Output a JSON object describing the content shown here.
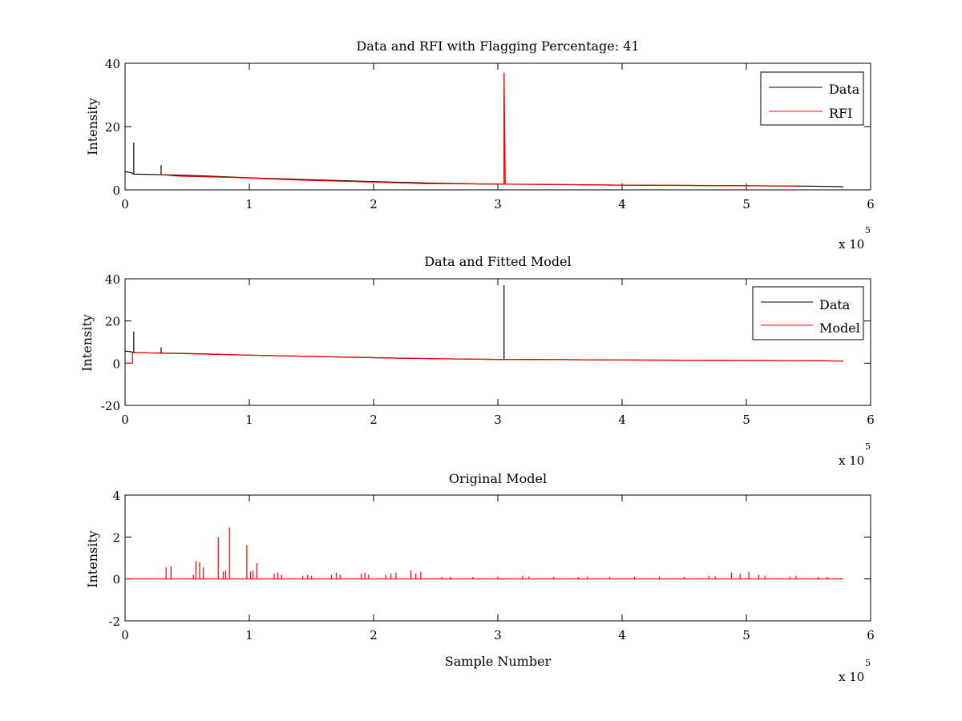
{
  "chart_data": [
    {
      "type": "line",
      "title": "Data and RFI with Flagging Percentage: 41",
      "xlabel": "",
      "ylabel": "Intensity",
      "xlim": [
        0,
        6
      ],
      "ylim": [
        0,
        40
      ],
      "x_ticks": [
        0,
        1,
        2,
        3,
        4,
        5,
        6
      ],
      "y_ticks": [
        0,
        20,
        40
      ],
      "x_multiplier": "x 10",
      "x_exponent": "5",
      "legend": {
        "position": "top-right",
        "entries": [
          "Data",
          "RFI"
        ]
      },
      "series": [
        {
          "name": "Data",
          "color": "#000000",
          "x": [
            0,
            0.05,
            0.07,
            0.5,
            1.0,
            1.5,
            2.0,
            2.5,
            3.0,
            3.05,
            3.5,
            4.0,
            4.5,
            5.0,
            5.5,
            5.78
          ],
          "y": [
            5.8,
            5.4,
            5.0,
            4.6,
            3.8,
            3.2,
            2.6,
            2.1,
            1.8,
            1.8,
            1.7,
            1.5,
            1.4,
            1.3,
            1.2,
            1.0
          ]
        },
        {
          "name": "RFI",
          "color": "#ff0000",
          "x": [
            0.28,
            0.45,
            0.9,
            1.4,
            1.85,
            2.4,
            3.05,
            3.05,
            3.06,
            4.0,
            4.6,
            5.4
          ],
          "y": [
            4.8,
            4.3,
            3.9,
            3.1,
            2.6,
            2.0,
            1.8,
            37.0,
            1.8,
            1.5,
            1.4,
            1.2
          ]
        }
      ],
      "spikes": [
        {
          "series": "Data",
          "x": 0.07,
          "y": 15.0
        },
        {
          "series": "Data",
          "x": 0.29,
          "y": 7.8
        },
        {
          "series": "RFI",
          "x": 3.05,
          "y": 37.0
        }
      ]
    },
    {
      "type": "line",
      "title": "Data and Fitted Model",
      "xlabel": "",
      "ylabel": "Intensity",
      "xlim": [
        0,
        6
      ],
      "ylim": [
        -20,
        40
      ],
      "x_ticks": [
        0,
        1,
        2,
        3,
        4,
        5,
        6
      ],
      "y_ticks": [
        -20,
        0,
        20,
        40
      ],
      "x_multiplier": "x 10",
      "x_exponent": "5",
      "legend": {
        "position": "top-right",
        "entries": [
          "Data",
          "Model"
        ]
      },
      "series": [
        {
          "name": "Data",
          "color": "#000000",
          "x": [
            0,
            0.05,
            0.07,
            0.5,
            1.0,
            1.5,
            2.0,
            2.5,
            3.0,
            3.5,
            4.0,
            4.5,
            5.0,
            5.5,
            5.78
          ],
          "y": [
            5.8,
            5.4,
            5.0,
            4.6,
            3.8,
            3.2,
            2.6,
            2.1,
            1.8,
            1.7,
            1.5,
            1.4,
            1.3,
            1.2,
            1.0
          ]
        },
        {
          "name": "Model",
          "color": "#ff0000",
          "x": [
            0,
            0.06,
            0.06,
            0.5,
            1.0,
            1.5,
            2.0,
            2.5,
            3.0,
            3.5,
            4.0,
            4.5,
            5.0,
            5.5,
            5.78
          ],
          "y": [
            0,
            0,
            5.0,
            4.5,
            3.8,
            3.2,
            2.6,
            2.1,
            1.8,
            1.7,
            1.5,
            1.4,
            1.3,
            1.2,
            1.0
          ]
        }
      ],
      "spikes": [
        {
          "series": "Data",
          "x": 0.07,
          "y": 15.0
        },
        {
          "series": "Data",
          "x": 0.29,
          "y": 7.5
        },
        {
          "series": "Data",
          "x": 3.05,
          "y": 37.0
        }
      ]
    },
    {
      "type": "line",
      "title": "Original Model",
      "xlabel": "Sample Number",
      "ylabel": "Intensity",
      "xlim": [
        0,
        6
      ],
      "ylim": [
        -2,
        4
      ],
      "x_ticks": [
        0,
        1,
        2,
        3,
        4,
        5,
        6
      ],
      "y_ticks": [
        -2,
        0,
        2,
        4
      ],
      "x_multiplier": "x 10",
      "x_exponent": "5",
      "series": [
        {
          "name": "",
          "color": "#ff0000",
          "x": [
            0,
            5.78
          ],
          "y": [
            0,
            0
          ]
        }
      ],
      "spikes": [
        {
          "x": 0.33,
          "y": 0.55
        },
        {
          "x": 0.37,
          "y": 0.6
        },
        {
          "x": 0.55,
          "y": 0.2
        },
        {
          "x": 0.57,
          "y": 0.85
        },
        {
          "x": 0.6,
          "y": 0.8
        },
        {
          "x": 0.63,
          "y": 0.55
        },
        {
          "x": 0.75,
          "y": 2.0
        },
        {
          "x": 0.79,
          "y": 0.35
        },
        {
          "x": 0.81,
          "y": 0.4
        },
        {
          "x": 0.84,
          "y": 2.45
        },
        {
          "x": 0.98,
          "y": 1.6
        },
        {
          "x": 1.01,
          "y": 0.35
        },
        {
          "x": 1.03,
          "y": 0.4
        },
        {
          "x": 1.06,
          "y": 0.75
        },
        {
          "x": 1.2,
          "y": 0.25
        },
        {
          "x": 1.23,
          "y": 0.3
        },
        {
          "x": 1.26,
          "y": 0.2
        },
        {
          "x": 1.43,
          "y": 0.15
        },
        {
          "x": 1.47,
          "y": 0.2
        },
        {
          "x": 1.5,
          "y": 0.15
        },
        {
          "x": 1.66,
          "y": 0.2
        },
        {
          "x": 1.7,
          "y": 0.3
        },
        {
          "x": 1.73,
          "y": 0.2
        },
        {
          "x": 1.9,
          "y": 0.25
        },
        {
          "x": 1.93,
          "y": 0.3
        },
        {
          "x": 1.96,
          "y": 0.2
        },
        {
          "x": 2.1,
          "y": 0.2
        },
        {
          "x": 2.14,
          "y": 0.25
        },
        {
          "x": 2.18,
          "y": 0.3
        },
        {
          "x": 2.3,
          "y": 0.4
        },
        {
          "x": 2.34,
          "y": 0.25
        },
        {
          "x": 2.38,
          "y": 0.35
        },
        {
          "x": 2.55,
          "y": 0.1
        },
        {
          "x": 2.62,
          "y": 0.1
        },
        {
          "x": 2.8,
          "y": 0.1
        },
        {
          "x": 3.0,
          "y": 0.12
        },
        {
          "x": 3.2,
          "y": 0.15
        },
        {
          "x": 3.25,
          "y": 0.12
        },
        {
          "x": 3.45,
          "y": 0.1
        },
        {
          "x": 3.65,
          "y": 0.1
        },
        {
          "x": 3.72,
          "y": 0.12
        },
        {
          "x": 3.9,
          "y": 0.1
        },
        {
          "x": 4.1,
          "y": 0.1
        },
        {
          "x": 4.3,
          "y": 0.12
        },
        {
          "x": 4.5,
          "y": 0.1
        },
        {
          "x": 4.7,
          "y": 0.15
        },
        {
          "x": 4.75,
          "y": 0.12
        },
        {
          "x": 4.88,
          "y": 0.3
        },
        {
          "x": 4.95,
          "y": 0.25
        },
        {
          "x": 5.02,
          "y": 0.35
        },
        {
          "x": 5.1,
          "y": 0.2
        },
        {
          "x": 5.15,
          "y": 0.15
        },
        {
          "x": 5.35,
          "y": 0.12
        },
        {
          "x": 5.4,
          "y": 0.15
        },
        {
          "x": 5.58,
          "y": 0.1
        },
        {
          "x": 5.65,
          "y": 0.1
        }
      ]
    }
  ]
}
